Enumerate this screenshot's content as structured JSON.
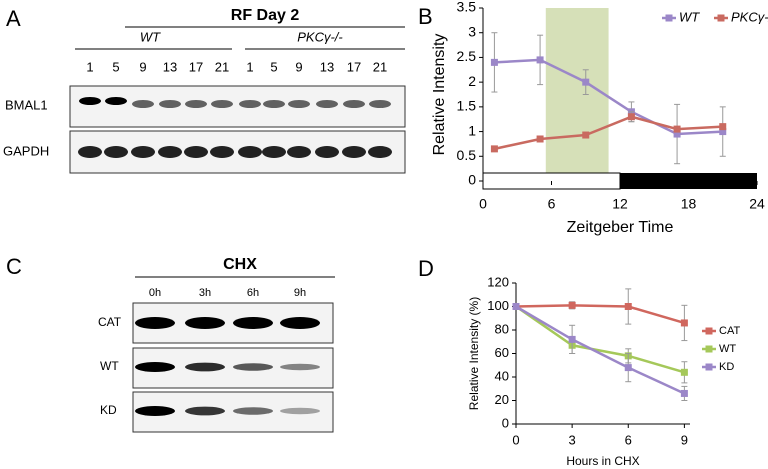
{
  "panels": {
    "a": "A",
    "b": "B",
    "c": "C",
    "d": "D"
  },
  "blot_a": {
    "title": "RF Day 2",
    "groups": [
      "WT",
      "PKCγ-/-"
    ],
    "lanes": [
      "1",
      "5",
      "9",
      "13",
      "17",
      "21",
      "1",
      "5",
      "9",
      "13",
      "17",
      "21"
    ],
    "rows": [
      "BMAL1",
      "GAPDH"
    ]
  },
  "blot_c": {
    "title": "CHX",
    "lanes": [
      "0h",
      "3h",
      "6h",
      "9h"
    ],
    "rows": [
      "CAT",
      "WT",
      "KD"
    ]
  },
  "chart_data": [
    {
      "type": "line",
      "x_label": "Zeitgeber Time",
      "y_label": "Relative Intensity",
      "x": [
        1,
        5,
        9,
        13,
        17,
        21
      ],
      "series": [
        {
          "name": "WT",
          "color": "#9b87c8",
          "values": [
            2.4,
            2.45,
            2.0,
            1.4,
            0.95,
            1.0
          ],
          "errors": [
            0.6,
            0.5,
            0.25,
            0.2,
            0.6,
            0.5
          ]
        },
        {
          "name": "PKCγ-/-",
          "color": "#c96a60",
          "values": [
            0.65,
            0.85,
            0.93,
            1.3,
            1.05,
            1.1
          ],
          "errors": [
            0.05,
            0.05,
            0.05,
            0.1,
            0.05,
            0.05
          ]
        }
      ],
      "xlim": [
        0,
        24
      ],
      "xticks": [
        0,
        6,
        12,
        18,
        24
      ],
      "ylim": [
        0,
        3.5
      ],
      "yticks": [
        0,
        0.5,
        1,
        1.5,
        2,
        2.5,
        3,
        3.5
      ],
      "shaded_region": [
        5.5,
        11
      ],
      "light_period": [
        0,
        12
      ],
      "dark_period": [
        12,
        24
      ],
      "legend": "top-right"
    },
    {
      "type": "line",
      "x_label": "Hours in CHX",
      "y_label": "Relative Intensity (%)",
      "x": [
        0,
        3,
        6,
        9
      ],
      "series": [
        {
          "name": "CAT",
          "color": "#d0675e",
          "values": [
            100,
            101,
            100,
            86
          ],
          "errors": [
            0,
            3,
            15,
            15
          ]
        },
        {
          "name": "WT",
          "color": "#a5c85a",
          "values": [
            100,
            67,
            58,
            44
          ],
          "errors": [
            0,
            7,
            6,
            9
          ]
        },
        {
          "name": "KD",
          "color": "#9b87c8",
          "values": [
            100,
            72,
            48,
            26
          ],
          "errors": [
            0,
            12,
            12,
            6
          ]
        }
      ],
      "xlim": [
        0,
        9.3
      ],
      "xticks": [
        0,
        3,
        6,
        9
      ],
      "ylim": [
        0,
        120
      ],
      "yticks": [
        0,
        20,
        40,
        60,
        80,
        100,
        120
      ],
      "legend": "right"
    }
  ]
}
